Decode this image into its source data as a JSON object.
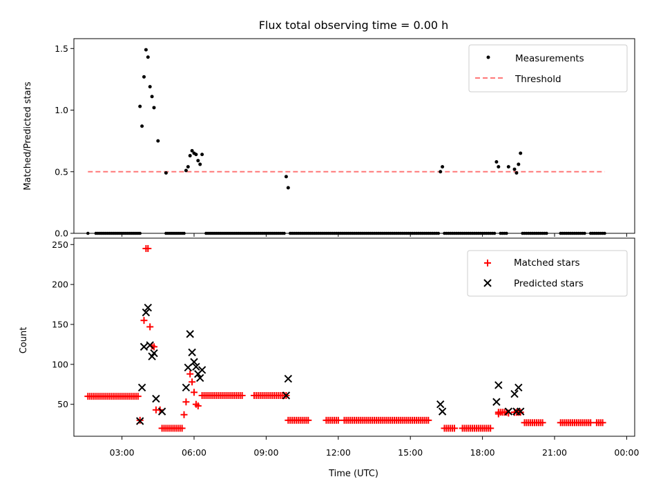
{
  "chart_data": [
    {
      "type": "scatter",
      "title": "Flux total observing time = 0.00 h",
      "xlabel": "",
      "ylabel": "Matched/Predicted stars",
      "xlim": [
        "01:00",
        "00:20"
      ],
      "ylim": [
        0,
        1.58
      ],
      "yticks": [
        "0.0",
        "0.5",
        "1.0",
        "1.5"
      ],
      "legend_position": "top-right",
      "series": [
        {
          "name": "Measurements",
          "marker": "dot",
          "color": "#000000",
          "points": [
            [
              "03:45",
              1.03
            ],
            [
              "03:50",
              0.87
            ],
            [
              "03:55",
              1.27
            ],
            [
              "04:00",
              1.49
            ],
            [
              "04:05",
              1.43
            ],
            [
              "04:10",
              1.19
            ],
            [
              "04:15",
              1.11
            ],
            [
              "04:20",
              1.02
            ],
            [
              "04:30",
              0.75
            ],
            [
              "04:50",
              0.49
            ],
            [
              "05:40",
              0.51
            ],
            [
              "05:45",
              0.54
            ],
            [
              "05:50",
              0.63
            ],
            [
              "05:55",
              0.67
            ],
            [
              "06:00",
              0.65
            ],
            [
              "06:05",
              0.64
            ],
            [
              "06:10",
              0.59
            ],
            [
              "06:15",
              0.56
            ],
            [
              "06:20",
              0.64
            ],
            [
              "09:50",
              0.46
            ],
            [
              "09:55",
              0.37
            ],
            [
              "16:15",
              0.5
            ],
            [
              "16:20",
              0.54
            ],
            [
              "18:35",
              0.58
            ],
            [
              "18:40",
              0.54
            ],
            [
              "19:05",
              0.54
            ],
            [
              "19:20",
              0.52
            ],
            [
              "19:25",
              0.49
            ],
            [
              "19:30",
              0.56
            ],
            [
              "19:35",
              0.65
            ]
          ],
          "zero_segments": [
            [
              "01:35",
              "01:35"
            ],
            [
              "01:55",
              "03:45"
            ],
            [
              "04:50",
              "05:35"
            ],
            [
              "06:30",
              "09:45"
            ],
            [
              "10:00",
              "16:10"
            ],
            [
              "16:25",
              "18:30"
            ],
            [
              "18:45",
              "19:00"
            ],
            [
              "19:40",
              "20:40"
            ],
            [
              "21:15",
              "22:15"
            ],
            [
              "22:30",
              "23:05"
            ]
          ]
        },
        {
          "name": "Threshold",
          "marker": "dashed-line",
          "color": "#ff7777",
          "points": [
            [
              "01:35",
              0.5
            ],
            [
              "23:05",
              0.5
            ]
          ]
        }
      ]
    },
    {
      "type": "scatter",
      "title": "",
      "xlabel": "Time (UTC)",
      "ylabel": "Count",
      "xlim": [
        "01:00",
        "00:20"
      ],
      "ylim": [
        10,
        258
      ],
      "xticks": [
        "03:00",
        "06:00",
        "09:00",
        "12:00",
        "15:00",
        "18:00",
        "21:00",
        "00:00"
      ],
      "yticks": [
        "50",
        "100",
        "150",
        "200",
        "250"
      ],
      "legend_position": "top-right",
      "series": [
        {
          "name": "Matched stars",
          "marker": "plus",
          "color": "#ff0000",
          "points": [
            [
              "03:45",
              30
            ],
            [
              "03:55",
              155
            ],
            [
              "04:00",
              245
            ],
            [
              "04:05",
              245
            ],
            [
              "04:10",
              147
            ],
            [
              "04:15",
              123
            ],
            [
              "04:20",
              122
            ],
            [
              "04:25",
              43
            ],
            [
              "04:35",
              43
            ],
            [
              "05:35",
              37
            ],
            [
              "05:40",
              53
            ],
            [
              "05:50",
              88
            ],
            [
              "05:55",
              78
            ],
            [
              "06:00",
              65
            ],
            [
              "06:05",
              50
            ],
            [
              "06:10",
              48
            ],
            [
              "09:45",
              61
            ],
            [
              "09:50",
              61
            ],
            [
              "18:40",
              38
            ],
            [
              "19:05",
              39
            ],
            [
              "19:20",
              40
            ]
          ],
          "segments": [
            {
              "from": "01:35",
              "to": "03:40",
              "value": 60
            },
            {
              "from": "04:40",
              "to": "05:30",
              "value": 20
            },
            {
              "from": "06:20",
              "to": "08:00",
              "value": 61
            },
            {
              "from": "08:30",
              "to": "09:45",
              "value": 61
            },
            {
              "from": "09:55",
              "to": "10:45",
              "value": 30
            },
            {
              "from": "11:30",
              "to": "12:00",
              "value": 30
            },
            {
              "from": "12:15",
              "to": "15:45",
              "value": 30
            },
            {
              "from": "16:25",
              "to": "16:50",
              "value": 20
            },
            {
              "from": "17:10",
              "to": "18:20",
              "value": 20
            },
            {
              "from": "18:40",
              "to": "19:00",
              "value": 40
            },
            {
              "from": "19:20",
              "to": "19:35",
              "value": 40
            },
            {
              "from": "19:45",
              "to": "20:30",
              "value": 27
            },
            {
              "from": "21:15",
              "to": "22:30",
              "value": 27
            },
            {
              "from": "22:45",
              "to": "23:00",
              "value": 27
            }
          ]
        },
        {
          "name": "Predicted stars",
          "marker": "x",
          "color": "#000000",
          "points": [
            [
              "03:45",
              29
            ],
            [
              "03:50",
              71
            ],
            [
              "03:55",
              122
            ],
            [
              "04:00",
              165
            ],
            [
              "04:05",
              171
            ],
            [
              "04:10",
              124
            ],
            [
              "04:15",
              110
            ],
            [
              "04:20",
              114
            ],
            [
              "04:25",
              57
            ],
            [
              "04:40",
              41
            ],
            [
              "05:40",
              71
            ],
            [
              "05:45",
              96
            ],
            [
              "05:50",
              138
            ],
            [
              "05:55",
              115
            ],
            [
              "06:00",
              103
            ],
            [
              "06:05",
              97
            ],
            [
              "06:10",
              88
            ],
            [
              "06:15",
              83
            ],
            [
              "06:20",
              93
            ],
            [
              "09:50",
              61
            ],
            [
              "09:55",
              82
            ],
            [
              "16:15",
              50
            ],
            [
              "16:20",
              41
            ],
            [
              "18:35",
              53
            ],
            [
              "18:40",
              74
            ],
            [
              "19:05",
              41
            ],
            [
              "19:20",
              63
            ],
            [
              "19:25",
              41
            ],
            [
              "19:30",
              71
            ],
            [
              "19:35",
              41
            ]
          ]
        }
      ]
    }
  ],
  "colors": {
    "matched": "#ff0000",
    "predicted": "#000000",
    "threshold": "#ff7777",
    "measurement": "#000000"
  }
}
